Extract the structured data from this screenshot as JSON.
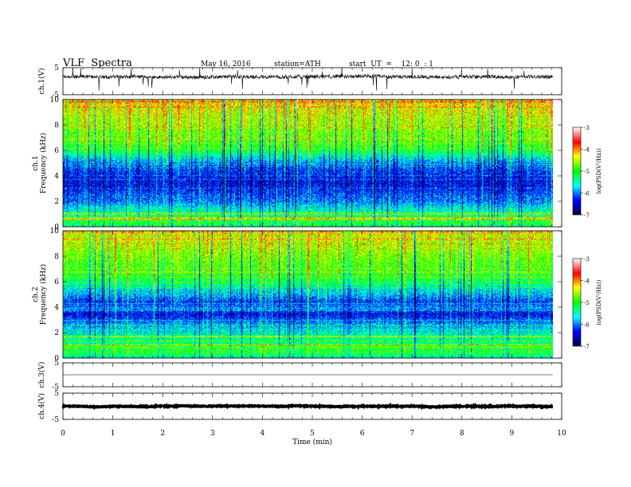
{
  "header": {
    "title": "VLF  Spectra",
    "date": "May 16, 2016",
    "station": "station=ATH",
    "start": "start  UT  =    12: 0  : 1"
  },
  "chart_data": [
    {
      "type": "line",
      "panel": "ch1-waveform",
      "ylabel": "ch.1(V)",
      "ylim": [
        -5,
        5
      ],
      "yticks": [
        "5",
        "-5"
      ],
      "xlim": [
        0,
        10
      ],
      "baseline": 1.6,
      "noise_amplitude": 0.7,
      "grid": false
    },
    {
      "type": "heatmap",
      "panel": "ch1-spectrogram",
      "ylabel": "ch.1\nFrequency (kHz)",
      "ylim": [
        0,
        10
      ],
      "yticks": [
        "0",
        "2",
        "4",
        "6",
        "8",
        "10"
      ],
      "xlim": [
        0,
        10
      ],
      "color_scale": {
        "label": "log(PSD(V²/Hz))",
        "range": [
          -7,
          -3
        ],
        "ticks": [
          "-3",
          "-4",
          "-5",
          "-6",
          "-7"
        ],
        "colors": [
          "#000040",
          "#0000ff",
          "#00ffff",
          "#00ff00",
          "#ffff00",
          "#ff0000",
          "#ffffff"
        ]
      },
      "freq_profile_khz": [
        0,
        0.5,
        1,
        1.5,
        2,
        2.5,
        3,
        3.5,
        4,
        4.5,
        5,
        5.5,
        6,
        6.5,
        7,
        7.5,
        8,
        8.5,
        9,
        9.5,
        10
      ],
      "log_psd_profile": [
        -5.3,
        -5.0,
        -5.4,
        -5.6,
        -6.0,
        -6.1,
        -6.3,
        -6.4,
        -6.3,
        -6.2,
        -6.0,
        -5.6,
        -5.1,
        -4.9,
        -4.8,
        -4.7,
        -4.6,
        -4.5,
        -4.4,
        -4.3,
        -4.2
      ]
    },
    {
      "type": "heatmap",
      "panel": "ch2-spectrogram",
      "ylabel": "ch.2\nFrequency (kHz)",
      "ylim": [
        0,
        10
      ],
      "yticks": [
        "0",
        "2",
        "4",
        "6",
        "8",
        "10"
      ],
      "xlim": [
        0,
        10
      ],
      "color_scale": {
        "label": "log(PSD(V²/Hz))",
        "range": [
          -7,
          -3
        ],
        "ticks": [
          "-3",
          "-4",
          "-5",
          "-6",
          "-7"
        ],
        "colors": [
          "#000040",
          "#0000ff",
          "#00ffff",
          "#00ff00",
          "#ffff00",
          "#ff0000",
          "#ffffff"
        ]
      },
      "freq_profile_khz": [
        0,
        0.5,
        1,
        1.5,
        2,
        2.5,
        3,
        3.5,
        4,
        4.5,
        5,
        5.5,
        6,
        6.5,
        7,
        7.5,
        8,
        8.5,
        9,
        9.5,
        10
      ],
      "log_psd_profile": [
        -5.6,
        -5.0,
        -5.1,
        -5.4,
        -5.6,
        -5.8,
        -6.1,
        -6.4,
        -6.0,
        -6.2,
        -5.8,
        -5.6,
        -5.2,
        -5.0,
        -4.9,
        -4.8,
        -4.7,
        -4.6,
        -4.5,
        -4.4,
        -4.3
      ]
    },
    {
      "type": "line",
      "panel": "ch3-waveform",
      "ylabel": "ch.3(V)",
      "ylim": [
        -5,
        5
      ],
      "yticks": [
        "5",
        "-5"
      ],
      "xlim": [
        0,
        10
      ],
      "baseline": 0.0,
      "noise_amplitude": 0.0,
      "grid": false
    },
    {
      "type": "line",
      "panel": "ch4-waveform",
      "ylabel": "ch.4(V)",
      "ylim": [
        -5,
        5
      ],
      "yticks": [
        "5",
        "-5"
      ],
      "xlim": [
        0,
        10
      ],
      "baseline": 0.0,
      "noise_amplitude": 0.15,
      "grid": false
    }
  ],
  "x_axis": {
    "label": "Time  (min)",
    "range": [
      0,
      10
    ],
    "ticks": [
      "0",
      "1",
      "2",
      "3",
      "4",
      "5",
      "6",
      "7",
      "8",
      "9",
      "10"
    ],
    "data_end": 9.82
  }
}
